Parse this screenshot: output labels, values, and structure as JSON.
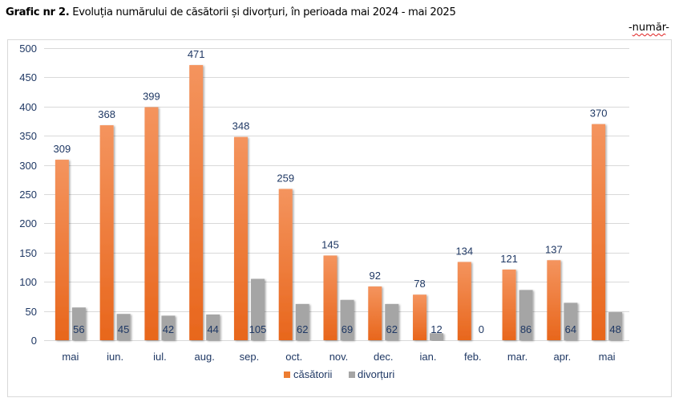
{
  "title": {
    "bold_prefix": "Grafic nr 2.",
    "text": " Evoluția numărului de căsătorii și divorțuri, în perioada mai 2024 - mai 2025"
  },
  "unit_label": {
    "dash_left": "-",
    "word": "număr",
    "dash_right": "-"
  },
  "chart_data": {
    "type": "bar",
    "title": "Grafic nr 2. Evoluția numărului de căsătorii și divorțuri, în perioada mai 2024 - mai 2025",
    "xlabel": "",
    "ylabel": "-număr-",
    "ylim": [
      0,
      500
    ],
    "yticks": [
      0,
      50,
      100,
      150,
      200,
      250,
      300,
      350,
      400,
      450,
      500
    ],
    "grid": true,
    "legend_position": "bottom",
    "categories": [
      "mai",
      "iun.",
      "iul.",
      "aug.",
      "sep.",
      "oct.",
      "nov.",
      "dec.",
      "ian.",
      "feb.",
      "mar.",
      "apr.",
      "mai"
    ],
    "series": [
      {
        "name": "căsătorii",
        "color": "#ED7D31",
        "values": [
          309,
          368,
          399,
          471,
          348,
          259,
          145,
          92,
          78,
          134,
          121,
          137,
          370
        ]
      },
      {
        "name": "divorțuri",
        "color": "#A5A5A5",
        "values": [
          56,
          45,
          42,
          44,
          105,
          62,
          69,
          62,
          12,
          0,
          86,
          64,
          48
        ]
      }
    ]
  },
  "colors": {
    "label_text": "#1F3864",
    "gridline": "#D9D9D9",
    "orange_light": "#F4945E",
    "orange_dark": "#E8661C",
    "gray": "#A5A5A5"
  }
}
